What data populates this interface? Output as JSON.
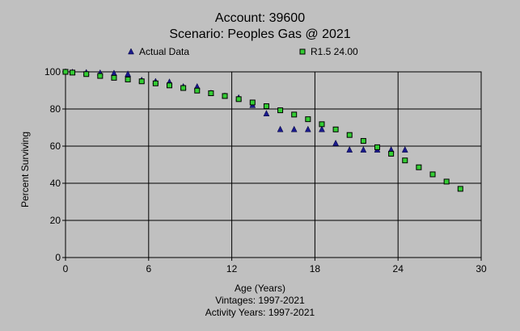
{
  "chart_data": {
    "type": "scatter",
    "title": "Account: 39600",
    "subtitle": "Scenario: Peoples Gas @ 2021",
    "xlabel": "Age (Years)",
    "ylabel": "Percent Surviving",
    "notes": [
      "Vintages: 1997-2021",
      "Activity Years: 1997-2021"
    ],
    "xlim": [
      0,
      30
    ],
    "ylim": [
      0,
      100
    ],
    "xticks": [
      0,
      6,
      12,
      18,
      24,
      30
    ],
    "yticks": [
      0,
      20,
      40,
      60,
      80,
      100
    ],
    "grid": true,
    "legend_position": "top",
    "series": [
      {
        "name": "Actual Data",
        "marker": "triangle",
        "color": "#1a1a8c",
        "x": [
          0,
          0.5,
          1.5,
          2.5,
          3.5,
          4.5,
          5.5,
          6.5,
          7.5,
          8.5,
          9.5,
          10.5,
          11.5,
          12.5,
          13.5,
          14.5,
          15.5,
          16.5,
          17.5,
          18.5,
          19.5,
          20.5,
          21.5,
          22.5,
          23.5,
          24.5
        ],
        "y": [
          100,
          99.8,
          99.6,
          99.4,
          99.2,
          98.8,
          95.5,
          94.8,
          94.5,
          92,
          92,
          88.5,
          87,
          86,
          82,
          77.5,
          69,
          69,
          69,
          69,
          61.5,
          58,
          58,
          58,
          58,
          58
        ]
      },
      {
        "name": "R1.5 24.00",
        "marker": "square",
        "color": "#33cc33",
        "x": [
          0,
          0.5,
          1.5,
          2.5,
          3.5,
          4.5,
          5.5,
          6.5,
          7.5,
          8.5,
          9.5,
          10.5,
          11.5,
          12.5,
          13.5,
          14.5,
          15.5,
          16.5,
          17.5,
          18.5,
          19.5,
          20.5,
          21.5,
          22.5,
          23.5,
          24.5,
          25.5,
          26.5,
          27.5,
          28.5
        ],
        "y": [
          100,
          99.6,
          98.8,
          97.8,
          96.8,
          95.9,
          94.9,
          93.8,
          92.7,
          91.3,
          89.9,
          88.5,
          87,
          85.3,
          83.5,
          81.5,
          79.3,
          77,
          74.5,
          71.8,
          69,
          66,
          62.8,
          59.4,
          55.9,
          52.3,
          48.6,
          44.8,
          40.9,
          37
        ]
      }
    ]
  }
}
